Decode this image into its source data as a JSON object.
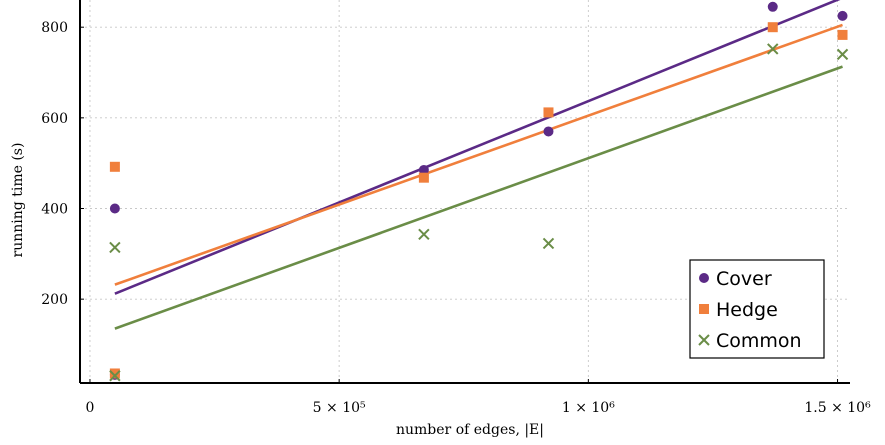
{
  "chart_data": {
    "type": "scatter",
    "xlabel": "number of edges, |E|",
    "ylabel": "running time (s)",
    "xlim": [
      -20000,
      1525000
    ],
    "ylim": [
      15,
      860
    ],
    "grid": true,
    "x_ticks": [
      {
        "value": 0,
        "label": "0"
      },
      {
        "value": 500000,
        "label": "5 × 10⁵"
      },
      {
        "value": 1000000,
        "label": "1 × 10⁶"
      },
      {
        "value": 1500000,
        "label": "1.5 × 10⁶"
      }
    ],
    "y_ticks": [
      {
        "value": 200,
        "label": "200"
      },
      {
        "value": 400,
        "label": "400"
      },
      {
        "value": 600,
        "label": "600"
      },
      {
        "value": 800,
        "label": "800"
      }
    ],
    "legend_position": "bottom-right",
    "series": [
      {
        "name": "Cover",
        "marker": "circle",
        "color": "#5b2a86",
        "points": [
          [
            50000,
            33
          ],
          [
            50000,
            400
          ],
          [
            670000,
            485
          ],
          [
            920000,
            570
          ],
          [
            1370000,
            845
          ],
          [
            1510000,
            825
          ]
        ],
        "fit_line": [
          [
            50000,
            212
          ],
          [
            1510000,
            865
          ]
        ]
      },
      {
        "name": "Hedge",
        "marker": "square",
        "color": "#f07f3c",
        "points": [
          [
            50000,
            36
          ],
          [
            50000,
            492
          ],
          [
            670000,
            468
          ],
          [
            920000,
            612
          ],
          [
            1370000,
            800
          ],
          [
            1510000,
            783
          ]
        ],
        "fit_line": [
          [
            50000,
            232
          ],
          [
            1510000,
            805
          ]
        ]
      },
      {
        "name": "Common",
        "marker": "cross",
        "color": "#6a8d47",
        "points": [
          [
            50000,
            31
          ],
          [
            50000,
            314
          ],
          [
            670000,
            343
          ],
          [
            920000,
            323
          ],
          [
            1370000,
            752
          ],
          [
            1510000,
            740
          ]
        ],
        "fit_line": [
          [
            50000,
            135
          ],
          [
            1510000,
            713
          ]
        ]
      }
    ]
  }
}
